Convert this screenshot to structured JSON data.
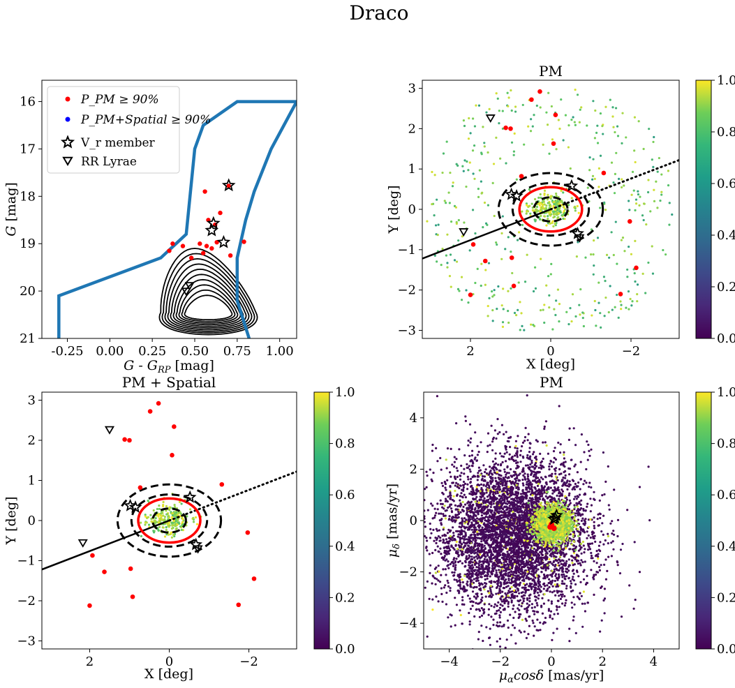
{
  "figure": {
    "title": "Draco"
  },
  "colors": {
    "member": "#ff0000",
    "spatial_member": "#0000ff",
    "cmd_filter": "#1f77b4",
    "contour": "#000000",
    "cbar_stops": [
      "#440154",
      "#3b528b",
      "#21918c",
      "#5ec962",
      "#fde725"
    ]
  },
  "legend": {
    "items": [
      {
        "label": "P_PM ≥ 90%",
        "marker": "red-dot"
      },
      {
        "label": "P_PM+Spatial ≥ 90%",
        "marker": "blue-dot"
      },
      {
        "label": "V_r member",
        "marker": "star"
      },
      {
        "label": "RR Lyrae",
        "marker": "triangle-down"
      }
    ]
  },
  "chart_data": [
    {
      "id": "cmd",
      "type": "scatter",
      "title": "",
      "xlabel": "G - G_RP [mag]",
      "ylabel": "G [mag]",
      "xlim": [
        -0.4,
        1.1
      ],
      "ylim": [
        21.0,
        15.55
      ],
      "xticks": [
        "-0.25",
        "0.00",
        "0.25",
        "0.50",
        "0.75",
        "1.00"
      ],
      "xtick_values": [
        -0.25,
        0.0,
        0.25,
        0.5,
        0.75,
        1.0
      ],
      "yticks": [
        "16",
        "17",
        "18",
        "19",
        "20",
        "21"
      ],
      "ytick_values": [
        16,
        17,
        18,
        19,
        20,
        21
      ],
      "filter_polygon": [
        [
          -0.3,
          21.0
        ],
        [
          -0.3,
          20.1
        ],
        [
          0.3,
          19.3
        ],
        [
          0.45,
          18.8
        ],
        [
          0.5,
          17.0
        ],
        [
          0.55,
          16.5
        ],
        [
          0.75,
          16.0
        ],
        [
          1.1,
          16.0
        ],
        [
          0.95,
          17.0
        ],
        [
          0.85,
          17.9
        ],
        [
          0.8,
          18.5
        ],
        [
          0.75,
          19.3
        ],
        [
          0.75,
          20.2
        ],
        [
          0.82,
          21.0
        ]
      ],
      "members": [
        [
          0.56,
          17.9
        ],
        [
          0.58,
          18.5
        ],
        [
          0.62,
          18.6
        ],
        [
          0.65,
          18.35
        ],
        [
          0.7,
          17.78
        ],
        [
          0.53,
          19.0
        ],
        [
          0.57,
          19.05
        ],
        [
          0.63,
          18.97
        ],
        [
          0.6,
          19.1
        ],
        [
          0.37,
          19.0
        ],
        [
          0.43,
          19.05
        ],
        [
          0.48,
          19.3
        ],
        [
          0.55,
          19.2
        ],
        [
          0.71,
          19.25
        ],
        [
          0.79,
          18.96
        ],
        [
          0.35,
          19.15
        ]
      ],
      "vr_members": [
        [
          0.7,
          17.77
        ],
        [
          0.61,
          18.57
        ],
        [
          0.6,
          18.72
        ],
        [
          0.67,
          18.97
        ]
      ],
      "rr_lyrae": [
        [
          0.47,
          19.88
        ],
        [
          0.45,
          20.0
        ]
      ],
      "contour_center": [
        0.58,
        20.45
      ]
    },
    {
      "id": "sky-pm",
      "type": "scatter",
      "title": "PM",
      "xlabel": "X [deg]",
      "ylabel": "Y [deg]",
      "xlim": [
        3.2,
        -3.2
      ],
      "ylim": [
        -3.2,
        3.2
      ],
      "xticks": [
        "2",
        "0",
        "−2"
      ],
      "xtick_values": [
        2,
        0,
        -2
      ],
      "yticks": [
        "−3",
        "−2",
        "−1",
        "0",
        "1",
        "2",
        "3"
      ],
      "ytick_values": [
        -3,
        -2,
        -1,
        0,
        1,
        2,
        3
      ],
      "colorbar": {
        "ticks": [
          "0.0",
          "0.2",
          "0.4",
          "0.6",
          "0.8",
          "1.0"
        ],
        "range": [
          0.0,
          1.0
        ]
      },
      "members": [
        [
          0.27,
          2.92
        ],
        [
          0.48,
          2.72
        ],
        [
          -0.12,
          2.34
        ],
        [
          1.12,
          2.02
        ],
        [
          1.0,
          2.0
        ],
        [
          -0.07,
          1.63
        ],
        [
          -1.32,
          0.9
        ],
        [
          1.93,
          -0.87
        ],
        [
          1.63,
          -1.28
        ],
        [
          0.97,
          -1.2
        ],
        [
          0.92,
          -1.9
        ],
        [
          -1.97,
          -0.3
        ],
        [
          -2.13,
          -1.45
        ],
        [
          -1.74,
          -2.1
        ],
        [
          2.0,
          -2.12
        ],
        [
          0.73,
          0.82
        ]
      ],
      "vr_members": [
        [
          0.98,
          0.37
        ],
        [
          -0.52,
          0.58
        ],
        [
          -0.67,
          -0.6
        ],
        [
          0.85,
          0.33
        ]
      ],
      "rr_lyrae": [
        [
          1.5,
          2.27
        ],
        [
          2.17,
          -0.55
        ],
        [
          -0.72,
          -0.7
        ]
      ],
      "field_point_count": 420,
      "core_point_count": 260,
      "ellipse_red": {
        "center": [
          0,
          0
        ],
        "a": 0.78,
        "b": 0.55
      },
      "ellipses_black": [
        {
          "a": 0.42,
          "b": 0.3
        },
        {
          "a": 0.95,
          "b": 0.65
        },
        {
          "a": 1.3,
          "b": 0.9
        }
      ],
      "major_axis": {
        "solid_from": [
          3.2,
          -1.22
        ],
        "to": [
          0,
          0
        ],
        "dotted_to": [
          -3.2,
          1.22
        ]
      }
    },
    {
      "id": "sky-pm-spatial",
      "type": "scatter",
      "title": "PM + Spatial",
      "xlabel": "X [deg]",
      "ylabel": "Y [deg]",
      "xlim": [
        3.2,
        -3.2
      ],
      "ylim": [
        -3.2,
        3.2
      ],
      "xticks": [
        "2",
        "0",
        "−2"
      ],
      "xtick_values": [
        2,
        0,
        -2
      ],
      "yticks": [
        "−3",
        "−2",
        "−1",
        "0",
        "1",
        "2",
        "3"
      ],
      "ytick_values": [
        -3,
        -2,
        -1,
        0,
        1,
        2,
        3
      ],
      "colorbar": {
        "ticks": [
          "0.0",
          "0.2",
          "0.4",
          "0.6",
          "0.8",
          "1.0"
        ],
        "range": [
          0.0,
          1.0
        ]
      },
      "members": [
        [
          0.27,
          2.92
        ],
        [
          0.48,
          2.72
        ],
        [
          -0.12,
          2.34
        ],
        [
          1.12,
          2.02
        ],
        [
          1.0,
          2.0
        ],
        [
          -0.07,
          1.63
        ],
        [
          -1.32,
          0.9
        ],
        [
          1.93,
          -0.87
        ],
        [
          1.63,
          -1.28
        ],
        [
          0.97,
          -1.2
        ],
        [
          0.92,
          -1.9
        ],
        [
          -1.97,
          -0.3
        ],
        [
          -2.13,
          -1.45
        ],
        [
          -1.74,
          -2.1
        ],
        [
          2.0,
          -2.12
        ],
        [
          0.73,
          0.82
        ]
      ],
      "vr_members": [
        [
          0.98,
          0.37
        ],
        [
          -0.52,
          0.58
        ],
        [
          -0.67,
          -0.6
        ],
        [
          0.85,
          0.33
        ]
      ],
      "rr_lyrae": [
        [
          1.5,
          2.27
        ],
        [
          2.17,
          -0.55
        ],
        [
          -0.72,
          -0.7
        ]
      ],
      "core_point_count": 260,
      "ellipse_red": {
        "center": [
          0,
          0
        ],
        "a": 0.78,
        "b": 0.55
      },
      "ellipses_black": [
        {
          "a": 0.42,
          "b": 0.3
        },
        {
          "a": 0.95,
          "b": 0.65
        },
        {
          "a": 1.3,
          "b": 0.9
        }
      ],
      "major_axis": {
        "solid_from": [
          3.2,
          -1.22
        ],
        "to": [
          0,
          0
        ],
        "dotted_to": [
          -3.2,
          1.22
        ]
      }
    },
    {
      "id": "proper-motion",
      "type": "scatter",
      "title": "PM",
      "xlabel": "μ_α cosδ [mas/yr]",
      "ylabel": "μ_δ [mas/yr]",
      "xlim": [
        -5,
        5
      ],
      "ylim": [
        -5,
        5
      ],
      "xticks": [
        "−4",
        "−2",
        "0",
        "2",
        "4"
      ],
      "xtick_values": [
        -4,
        -2,
        0,
        2,
        4
      ],
      "yticks": [
        "−4",
        "−2",
        "0",
        "2",
        "4"
      ],
      "ytick_values": [
        -4,
        -2,
        0,
        2,
        4
      ],
      "colorbar": {
        "ticks": [
          "0.0",
          "0.2",
          "0.4",
          "0.6",
          "0.8",
          "1.0"
        ],
        "range": [
          0.0,
          1.0
        ]
      },
      "field_center": [
        -1.5,
        -0.5
      ],
      "field_sigma": 1.5,
      "field_point_count": 5200,
      "cluster_center": [
        0.05,
        -0.15
      ],
      "cluster_sigma": 0.35,
      "cluster_point_count": 1500,
      "members": [
        [
          -0.05,
          -0.25
        ],
        [
          0.1,
          -0.3
        ],
        [
          0.0,
          -0.15
        ]
      ],
      "vr_members": [
        [
          0.1,
          0.05
        ],
        [
          0.2,
          0.2
        ],
        [
          0.15,
          0.1
        ]
      ]
    }
  ]
}
